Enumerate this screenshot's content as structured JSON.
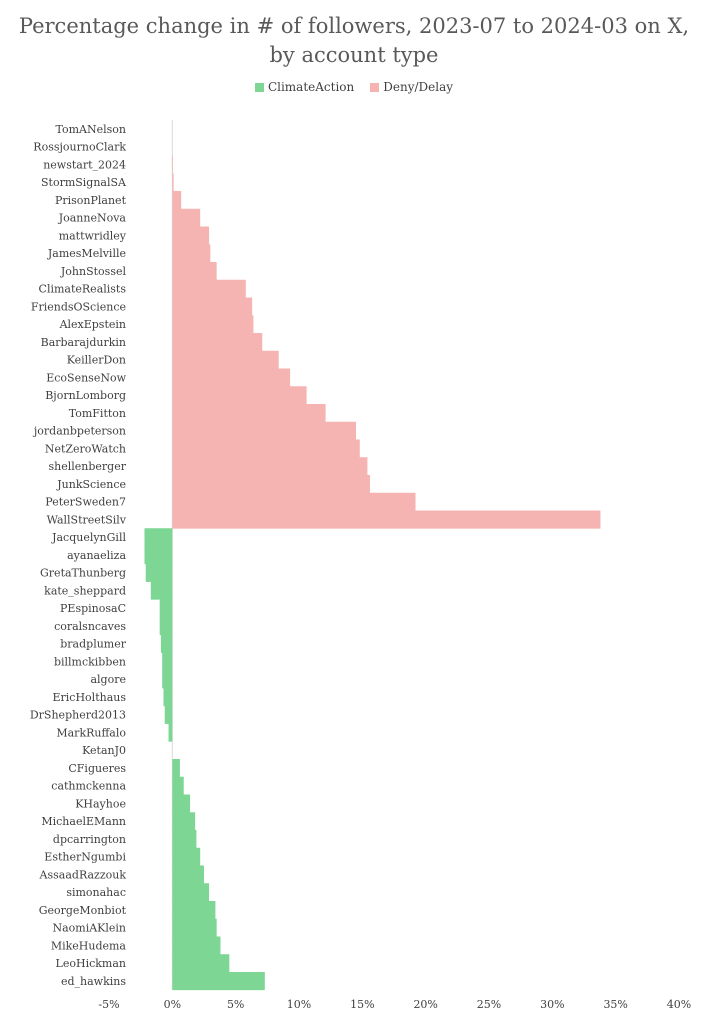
{
  "chart_data": {
    "type": "bar",
    "orientation": "horizontal",
    "title_line1": "Percentage change in # of followers, 2023-07 to 2024-03 on X,",
    "title_line2": "by account type",
    "legend": [
      {
        "name": "ClimateAction",
        "color": "#7dd694"
      },
      {
        "name": "Deny/Delay",
        "color": "#f5b4b1"
      }
    ],
    "xlim": [
      -5,
      40
    ],
    "xticks": [
      -5,
      0,
      5,
      10,
      15,
      20,
      25,
      30,
      35,
      40
    ],
    "xtick_labels": [
      "-5%",
      "0%",
      "5%",
      "10%",
      "15%",
      "20%",
      "25%",
      "30%",
      "35%",
      "40%"
    ],
    "grid": false,
    "legend_position": "top-center",
    "series": [
      {
        "name": "Deny/Delay",
        "color": "#f5b4b1",
        "categories": [
          "TomANelson",
          "RossjournoClark",
          "newstart_2024",
          "StormSignalSA",
          "PrisonPlanet",
          "JoanneNova",
          "mattwridley",
          "JamesMelville",
          "JohnStossel",
          "ClimateRealists",
          "FriendsOScience",
          "AlexEpstein",
          "Barbarajdurkin",
          "KeillerDon",
          "EcoSenseNow",
          "BjornLomborg",
          "TomFitton",
          "jordanbpeterson",
          "NetZeroWatch",
          "shellenberger",
          "JunkScience",
          "PeterSweden7",
          "WallStreetSilv"
        ],
        "values": [
          0.0,
          0.0,
          0.05,
          0.1,
          0.7,
          2.2,
          2.9,
          3.0,
          3.5,
          5.8,
          6.3,
          6.4,
          7.1,
          8.4,
          9.3,
          10.6,
          12.1,
          14.5,
          14.8,
          15.4,
          15.6,
          19.2,
          33.8
        ]
      },
      {
        "name": "ClimateAction",
        "color": "#7dd694",
        "categories": [
          "JacquelynGill",
          "ayanaeliza",
          "GretaThunberg",
          "kate_sheppard",
          "PEspinosaC",
          "coralsncaves",
          "bradplumer",
          "billmckibben",
          "algore",
          "EricHolthaus",
          "DrShepherd2013",
          "MarkRuffalo",
          "KetanJ0",
          "CFigueres",
          "cathmckenna",
          "KHayhoe",
          "MichaelEMann",
          "dpcarrington",
          "EstherNgumbi",
          "AssaadRazzouk",
          "simonahac",
          "GeorgeMonbiot",
          "NaomiAKlein",
          "MikeHudema",
          "LeoHickman",
          "ed_hawkins"
        ],
        "values": [
          -2.2,
          -2.2,
          -2.1,
          -1.7,
          -1.0,
          -1.0,
          -0.9,
          -0.8,
          -0.8,
          -0.7,
          -0.6,
          -0.3,
          0.0,
          0.6,
          0.9,
          1.4,
          1.8,
          1.9,
          2.2,
          2.5,
          2.9,
          3.4,
          3.5,
          3.8,
          4.5,
          7.3
        ]
      }
    ]
  }
}
